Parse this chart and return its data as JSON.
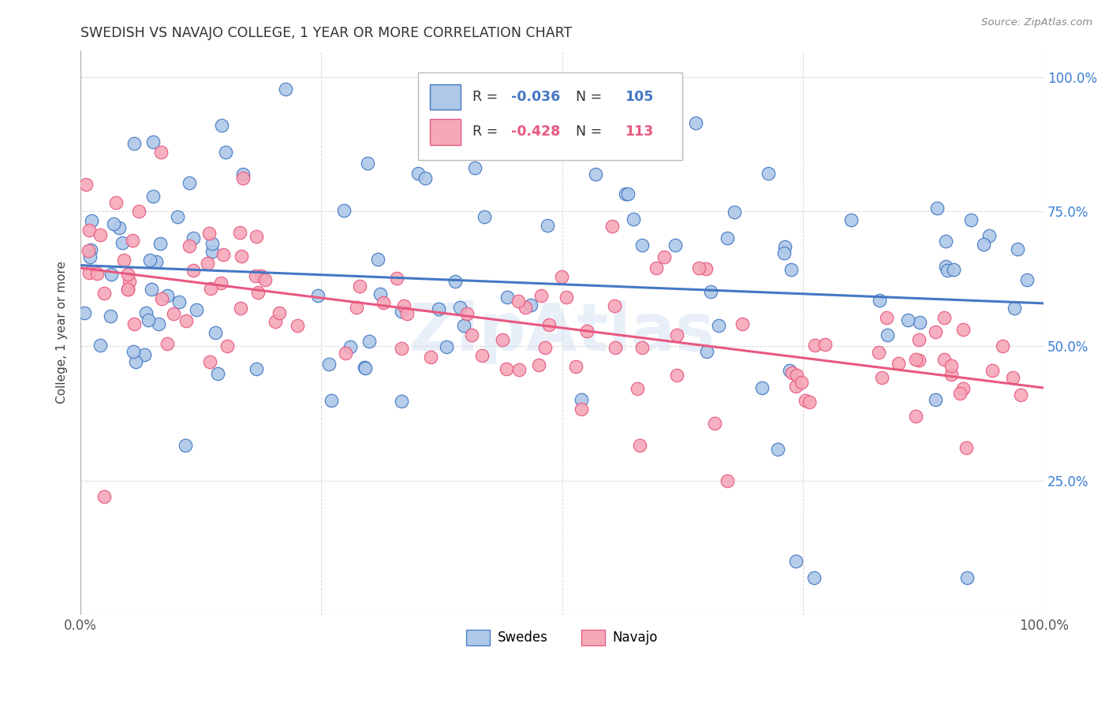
{
  "title": "SWEDISH VS NAVAJO COLLEGE, 1 YEAR OR MORE CORRELATION CHART",
  "source": "Source: ZipAtlas.com",
  "ylabel": "College, 1 year or more",
  "swedes_R": "-0.036",
  "swedes_N": "105",
  "navajo_R": "-0.428",
  "navajo_N": "113",
  "swedes_color": "#adc8e8",
  "navajo_color": "#f5a8b8",
  "swedes_line_color": "#4478c4",
  "navajo_line_color": "#e85880",
  "legend_label_swedes": "Swedes",
  "legend_label_navajo": "Navajo",
  "watermark": "ZipAtlas",
  "background_color": "#ffffff",
  "grid_color": "#d8d8d8",
  "right_tick_color": "#3a7fd5",
  "swedes_intercept": 0.63,
  "swedes_slope": -0.025,
  "navajo_intercept": 0.645,
  "navajo_slope": -0.195
}
